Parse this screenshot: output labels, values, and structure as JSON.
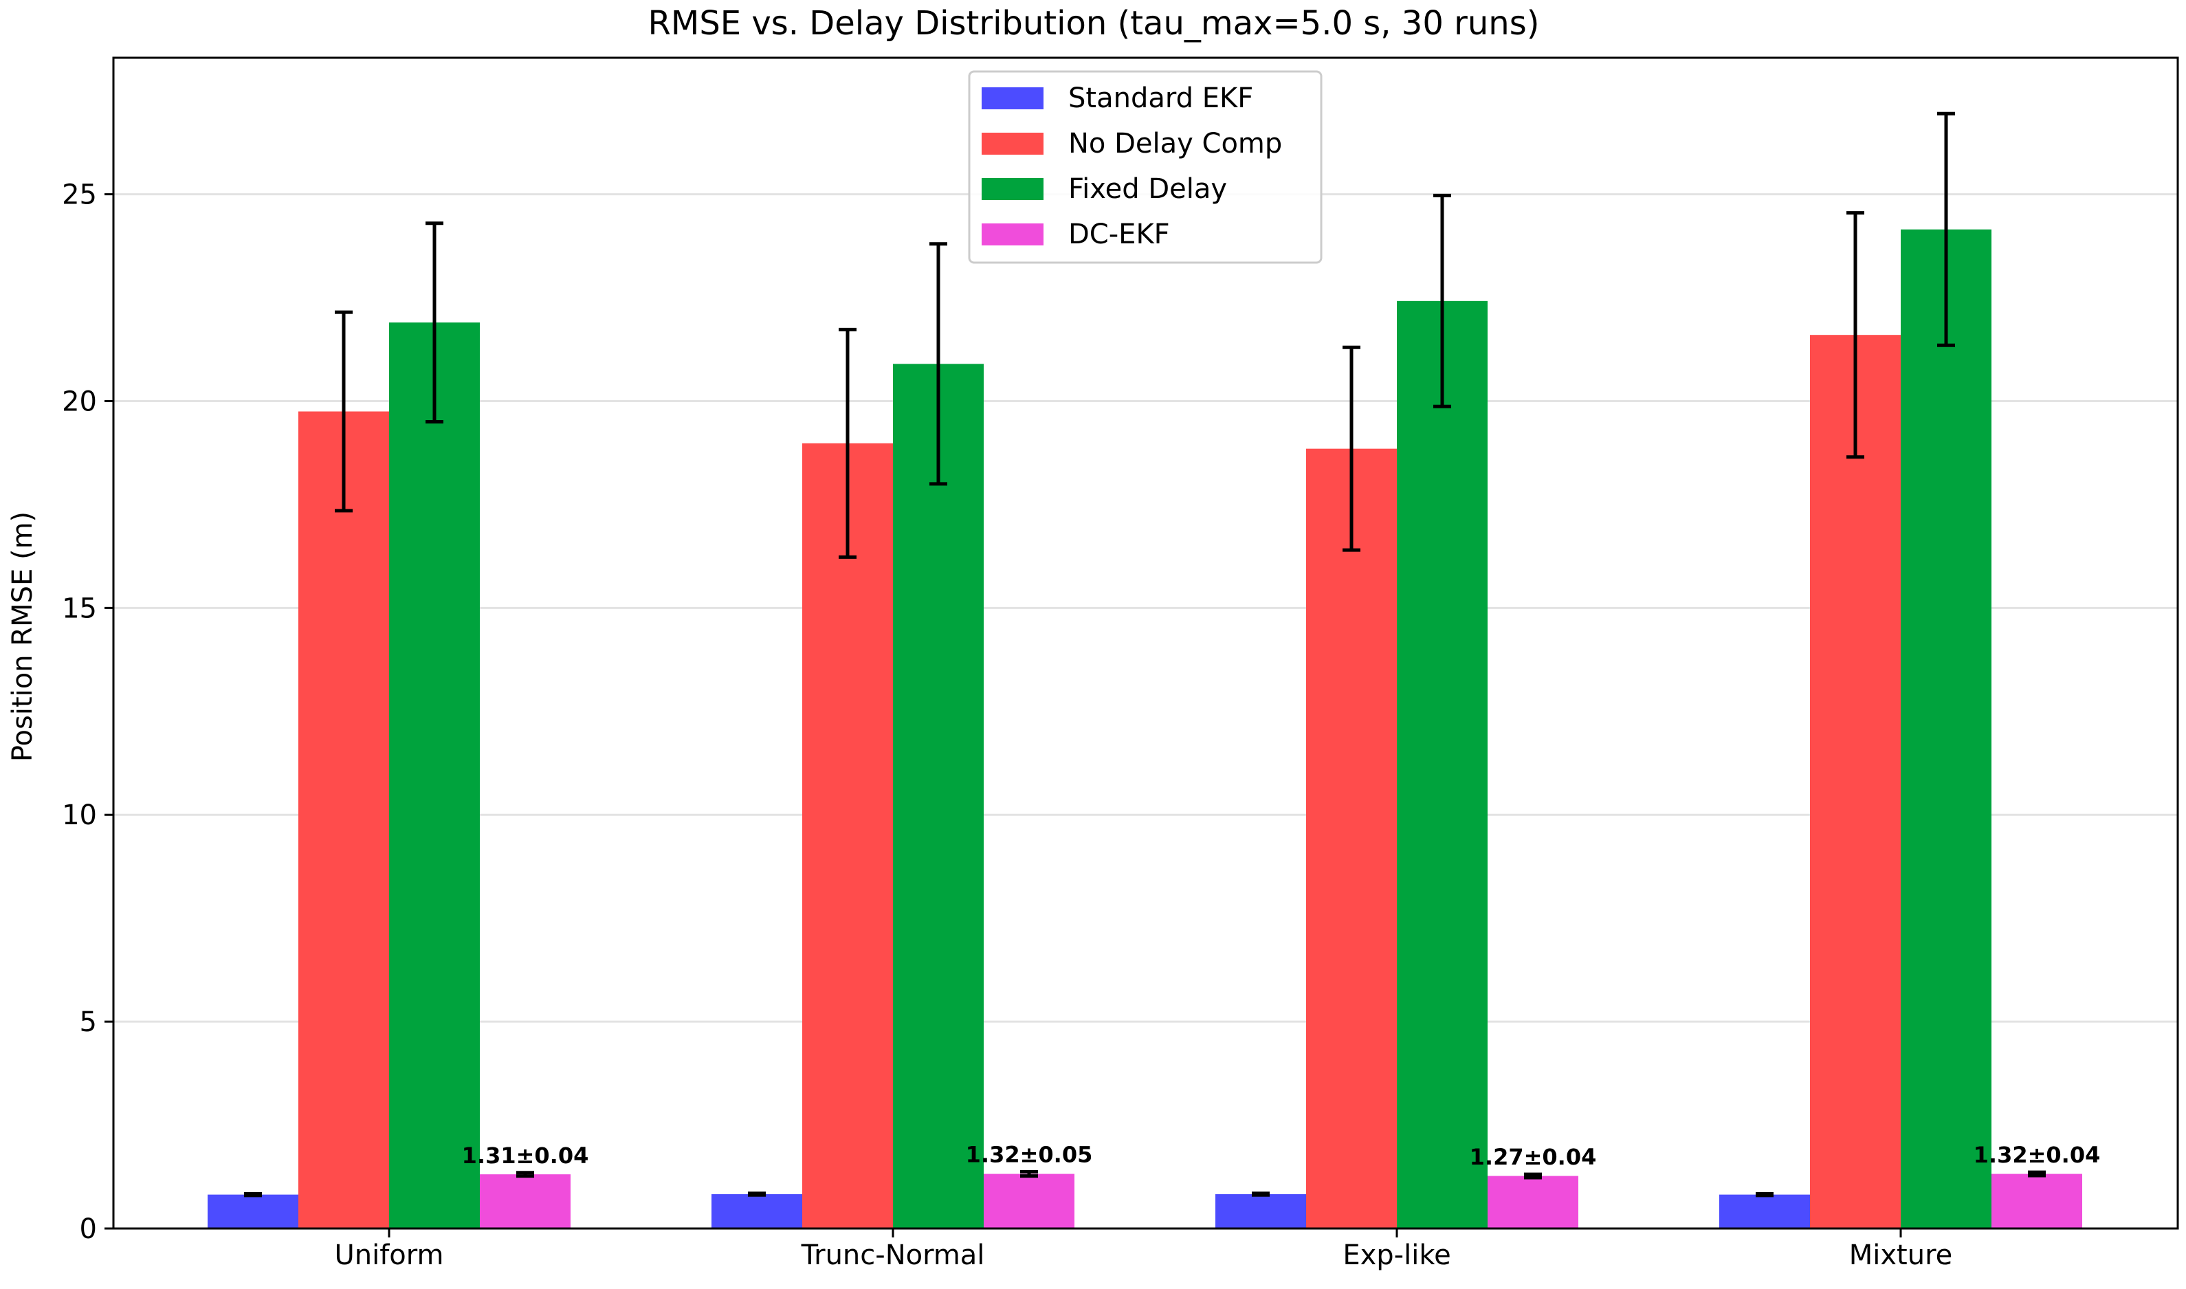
{
  "chart_data": {
    "type": "bar",
    "title": "RMSE vs. Delay Distribution (tau_max=5.0 s, 30 runs)",
    "xlabel": "",
    "ylabel": "Position RMSE (m)",
    "ylim": [
      0,
      28.3
    ],
    "yticks": [
      0,
      5,
      10,
      15,
      20,
      25
    ],
    "grid": "horizontal",
    "legend_position": "top-center",
    "categories": [
      "Uniform",
      "Trunc-Normal",
      "Exp-like",
      "Mixture"
    ],
    "series": [
      {
        "name": "Standard EKF",
        "color": "#4c4cff",
        "values": [
          0.82,
          0.83,
          0.83,
          0.82
        ],
        "errors": [
          0.02,
          0.02,
          0.02,
          0.02
        ]
      },
      {
        "name": "No Delay Comp",
        "color": "#ff4c4c",
        "values": [
          19.75,
          18.98,
          18.85,
          21.6
        ],
        "errors": [
          2.4,
          2.75,
          2.45,
          2.95
        ]
      },
      {
        "name": "Fixed Delay",
        "color": "#00a33d",
        "values": [
          21.9,
          20.9,
          22.42,
          24.15
        ],
        "errors": [
          2.4,
          2.9,
          2.55,
          2.8
        ]
      },
      {
        "name": "DC-EKF",
        "color": "#f04ddb",
        "values": [
          1.31,
          1.32,
          1.27,
          1.32
        ],
        "errors": [
          0.04,
          0.05,
          0.04,
          0.04
        ],
        "labels": [
          "1.31±0.04",
          "1.32±0.05",
          "1.27±0.04",
          "1.32±0.04"
        ]
      }
    ]
  }
}
